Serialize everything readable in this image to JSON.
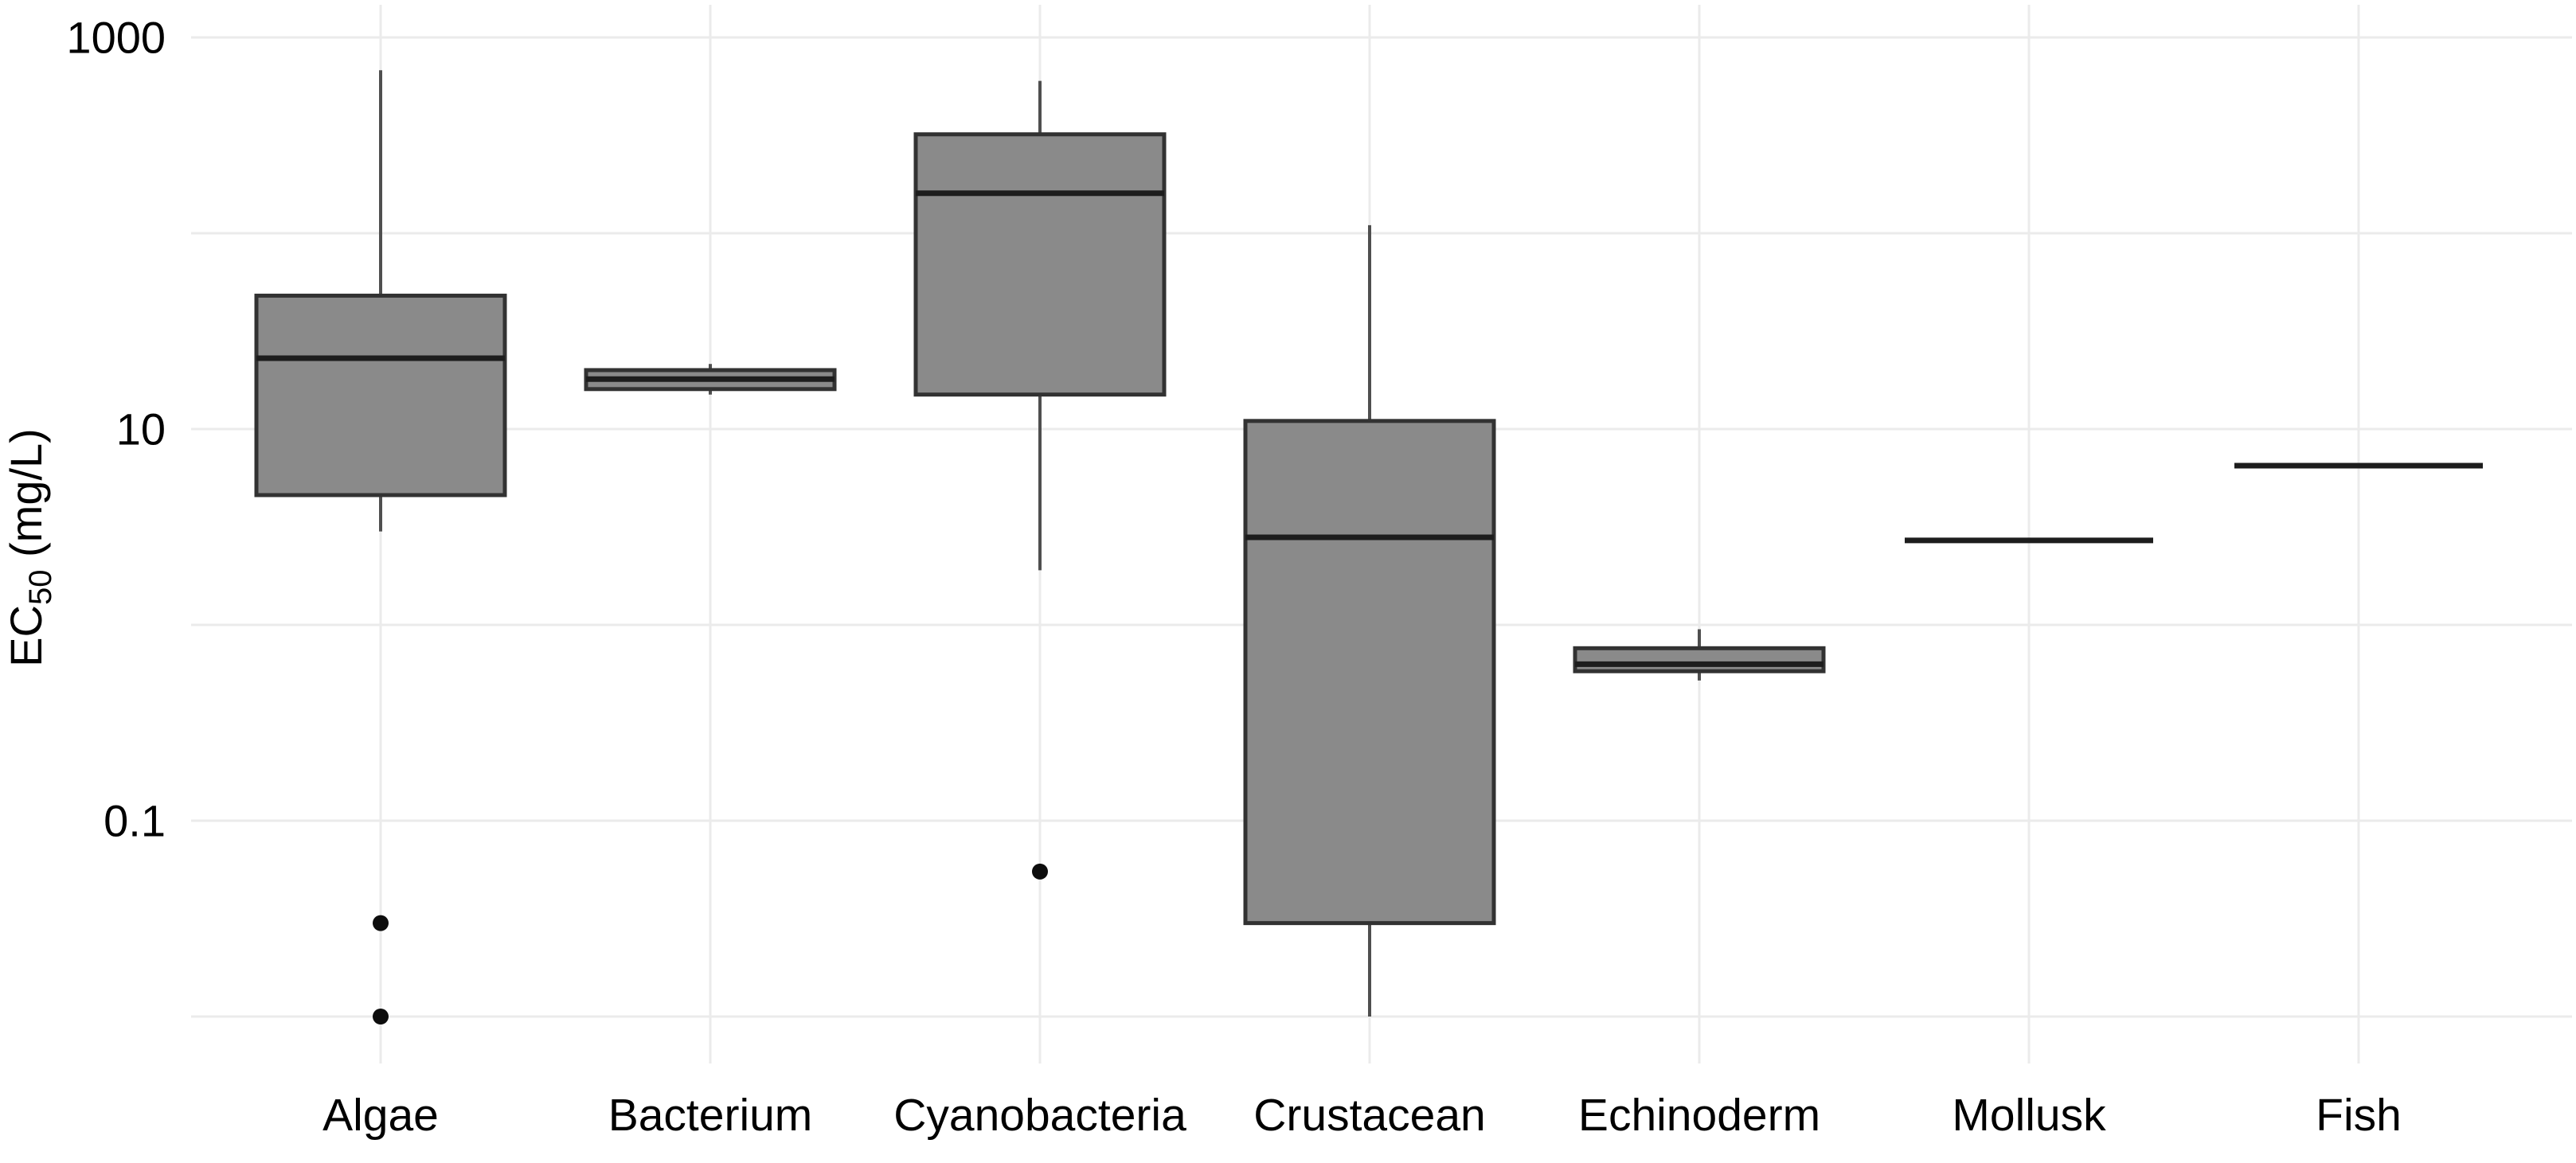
{
  "figure": {
    "background": "#ffffff",
    "description": "Boxplot of EC50 toxicity values (mg/L) by taxonomic group, log-scale y axis"
  },
  "chart_data": {
    "type": "box",
    "title": "",
    "xlabel": "",
    "ylabel": {
      "prefix": "EC",
      "subscript": "50",
      "suffix": " (mg/L)"
    },
    "categories": [
      "Algae",
      "Bacterium",
      "Cyanobacteria",
      "Crustacean",
      "Echinoderm",
      "Mollusk",
      "Fish"
    ],
    "y_axis": {
      "scale": "log10",
      "tick_labels": [
        "1000",
        "10",
        "0.1"
      ],
      "tick_values": [
        1000,
        10,
        0.1
      ],
      "gridline_values": [
        1000,
        100,
        10,
        1,
        0.1,
        0.01
      ],
      "range_approx": [
        0.006,
        1500
      ],
      "grid": true
    },
    "legend": null,
    "series": [
      {
        "category": "Algae",
        "whisker_low": 3.0,
        "q1": 4.6,
        "median": 23,
        "q3": 48,
        "whisker_high": 680,
        "outliers": [
          0.03,
          0.01
        ]
      },
      {
        "category": "Bacterium",
        "whisker_low": 15,
        "q1": 16,
        "median": 18,
        "q3": 20,
        "whisker_high": 21.5,
        "outliers": []
      },
      {
        "category": "Cyanobacteria",
        "whisker_low": 1.9,
        "q1": 15,
        "median": 160,
        "q3": 320,
        "whisker_high": 600,
        "outliers": [
          0.055
        ]
      },
      {
        "category": "Crustacean",
        "whisker_low": 0.01,
        "q1": 0.03,
        "median": 2.8,
        "q3": 11,
        "whisker_high": 110,
        "outliers": []
      },
      {
        "category": "Echinoderm",
        "whisker_low": 0.52,
        "q1": 0.58,
        "median": 0.63,
        "q3": 0.76,
        "whisker_high": 0.95,
        "outliers": []
      },
      {
        "category": "Mollusk",
        "whisker_low": 2.7,
        "q1": 2.7,
        "median": 2.7,
        "q3": 2.7,
        "whisker_high": 2.7,
        "outliers": []
      },
      {
        "category": "Fish",
        "whisker_low": 6.5,
        "q1": 6.5,
        "median": 6.5,
        "q3": 6.5,
        "whisker_high": 6.5,
        "outliers": []
      }
    ],
    "style": {
      "box_fill": "#8a8a8a",
      "box_stroke": "#323232",
      "median_color": "#1d1d1d",
      "whisker_color": "#4f4f4f",
      "outlier_color": "#0d0d0d",
      "grid_color": "#ebebeb",
      "text_color": "#000000"
    }
  }
}
